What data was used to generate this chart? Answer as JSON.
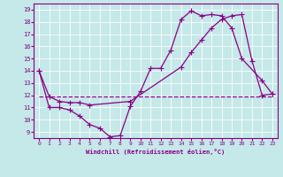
{
  "xlabel": "Windchill (Refroidissement éolien,°C)",
  "xlim": [
    -0.5,
    23.5
  ],
  "ylim": [
    8.5,
    19.5
  ],
  "xticks": [
    0,
    1,
    2,
    3,
    4,
    5,
    6,
    7,
    8,
    9,
    10,
    11,
    12,
    13,
    14,
    15,
    16,
    17,
    18,
    19,
    20,
    21,
    22,
    23
  ],
  "yticks": [
    9,
    10,
    11,
    12,
    13,
    14,
    15,
    16,
    17,
    18,
    19
  ],
  "bg_color": "#c5e8e8",
  "line_color": "#880088",
  "line1_x": [
    0,
    1,
    2,
    3,
    4,
    5,
    6,
    7,
    8,
    9,
    10,
    11,
    12,
    13,
    14,
    15,
    16,
    17,
    18,
    19,
    20,
    21,
    22,
    23
  ],
  "line1_y": [
    11.9,
    11.9,
    11.9,
    11.9,
    11.9,
    11.9,
    11.9,
    11.9,
    11.9,
    11.9,
    11.9,
    11.9,
    11.9,
    11.9,
    11.9,
    11.9,
    11.9,
    11.9,
    11.9,
    11.9,
    11.9,
    11.9,
    11.9,
    11.9
  ],
  "line2_x": [
    0,
    1,
    2,
    3,
    4,
    5,
    6,
    7,
    8,
    9,
    10,
    11,
    12,
    13,
    14,
    15,
    16,
    17,
    18,
    19,
    20,
    22,
    23
  ],
  "line2_y": [
    14,
    11.0,
    11.0,
    10.8,
    10.3,
    9.6,
    9.3,
    8.6,
    8.7,
    11.1,
    12.3,
    14.2,
    14.2,
    15.7,
    18.2,
    18.9,
    18.5,
    18.6,
    18.5,
    17.5,
    15.0,
    13.2,
    12.1
  ],
  "line3_x": [
    0,
    1,
    2,
    3,
    4,
    5,
    9,
    14,
    15,
    16,
    17,
    18,
    19,
    20,
    21,
    22,
    23
  ],
  "line3_y": [
    14,
    11.9,
    11.5,
    11.4,
    11.4,
    11.2,
    11.5,
    14.3,
    15.5,
    16.5,
    17.5,
    18.2,
    18.5,
    18.6,
    14.8,
    12.0,
    12.1
  ]
}
